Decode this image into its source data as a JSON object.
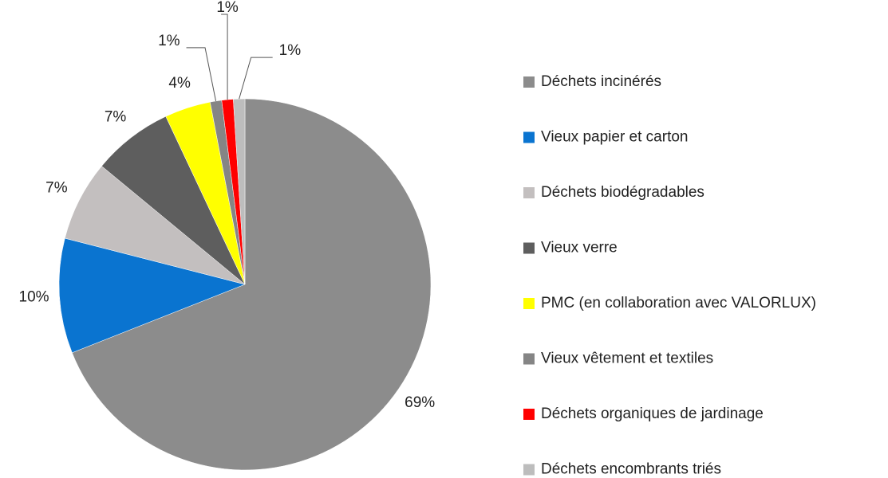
{
  "chart_data": {
    "type": "pie",
    "categories": [
      "Déchets incinérés",
      "Vieux papier et carton",
      "Déchets biodégradables",
      "Vieux verre",
      "PMC (en collaboration avec VALORLUX)",
      "Vieux vêtement et textiles",
      "Déchets organiques de jardinage",
      "Déchets encombrants triés"
    ],
    "values": [
      69,
      10,
      7,
      7,
      4,
      1,
      1,
      1
    ],
    "value_labels": [
      "69%",
      "10%",
      "7%",
      "7%",
      "4%",
      "1%",
      "1%",
      "1%"
    ],
    "colors": [
      "#8c8c8c",
      "#0a74d0",
      "#c3bfbf",
      "#5e5e5e",
      "#ffff00",
      "#858585",
      "#ff0000",
      "#bdbdbd"
    ],
    "legend": "right"
  }
}
